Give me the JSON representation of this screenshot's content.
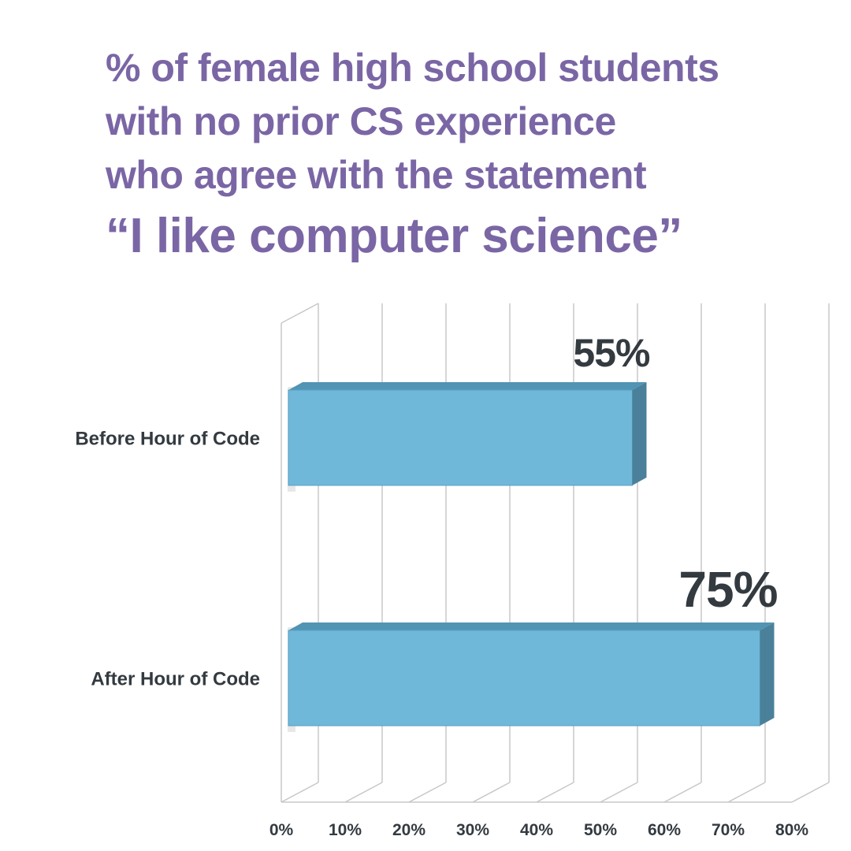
{
  "title": {
    "lines": [
      "% of female high school students",
      "with no prior CS experience",
      "who agree with the statement"
    ],
    "quote": "“I like computer science”"
  },
  "colors": {
    "title": "#7a66a5",
    "bar_front": "#6fb8da",
    "bar_top": "#5194b4",
    "bar_side": "#4a8099",
    "text": "#333a40",
    "grid": "#c8c8c8"
  },
  "chart_data": {
    "type": "bar",
    "orientation": "horizontal",
    "style": "3d",
    "categories": [
      "Before Hour of Code",
      "After Hour of Code"
    ],
    "values": [
      55,
      75
    ],
    "value_labels": [
      "55%",
      "75%"
    ],
    "xlim": [
      0,
      80
    ],
    "xticks": [
      "0%",
      "10%",
      "20%",
      "30%",
      "40%",
      "50%",
      "60%",
      "70%",
      "80%"
    ],
    "grid": true,
    "legend": "none"
  }
}
